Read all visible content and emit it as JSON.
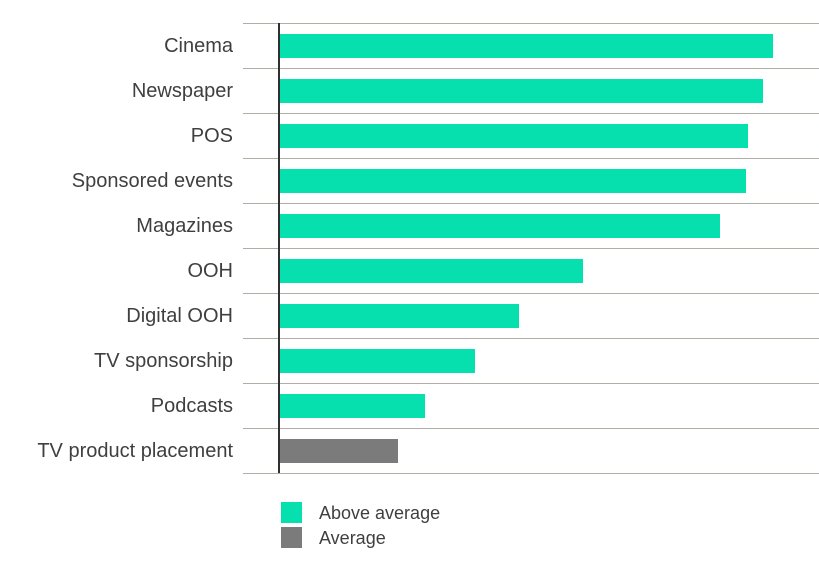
{
  "chart": {
    "background_color": "#ffffff",
    "axis_color": "#303030",
    "gridline_color": "#b2ada4",
    "label_color": "#3f3f3f"
  },
  "chart_data": {
    "type": "bar",
    "orientation": "horizontal",
    "title": "",
    "xlabel": "",
    "ylabel": "",
    "categories": [
      "Cinema",
      "Newspaper",
      "POS",
      "Sponsored events",
      "Magazines",
      "OOH",
      "Digital OOH",
      "TV sponsorship",
      "Podcasts",
      "TV product placement"
    ],
    "values_pct_of_axis": [
      91.5,
      89.6,
      86.9,
      86.4,
      81.7,
      56.3,
      44.4,
      36.1,
      26.9,
      21.9
    ],
    "bar_series": [
      "Above average",
      "Above average",
      "Above average",
      "Above average",
      "Above average",
      "Above average",
      "Above average",
      "Above average",
      "Above average",
      "Average"
    ],
    "series_colors": {
      "Above average": "#05e0ae",
      "Average": "#7b7b7b"
    },
    "xlim": [
      0,
      100
    ],
    "grid": "horizontal category separator lines, no value gridlines, no numeric axis labels",
    "legend_position": "bottom-left",
    "legend": {
      "items": [
        {
          "label": "Above average",
          "color": "#05e0ae",
          "key": "Above average"
        },
        {
          "label": "Average",
          "color": "#7b7b7b",
          "key": "Average"
        }
      ]
    }
  }
}
